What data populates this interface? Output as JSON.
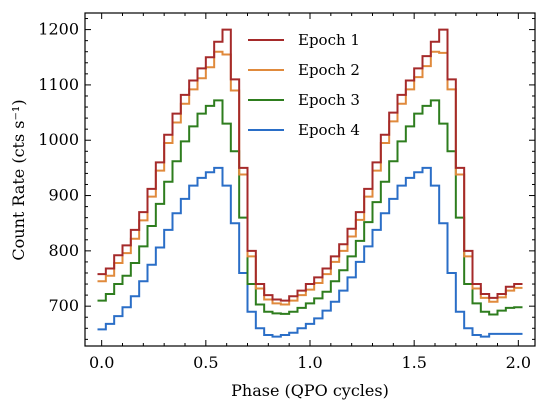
{
  "chart_data": {
    "type": "line",
    "title": "",
    "xlabel": "Phase (QPO cycles)",
    "ylabel": "Count Rate (cts s⁻¹)",
    "xlim": [
      -0.08,
      2.08
    ],
    "ylim": [
      628,
      1230
    ],
    "step": "histogram",
    "grid": false,
    "legend_position": "top-center",
    "xticks": [
      0.0,
      0.5,
      1.0,
      1.5,
      2.0
    ],
    "xtick_labels": [
      "0.0",
      "0.5",
      "1.0",
      "1.5",
      "2.0"
    ],
    "yticks": [
      700,
      800,
      900,
      1000,
      1100,
      1200
    ],
    "ytick_labels": [
      "700",
      "800",
      "900",
      "1000",
      "1100",
      "1200"
    ],
    "x": [
      0.0,
      0.04,
      0.08,
      0.12,
      0.16,
      0.2,
      0.24,
      0.28,
      0.32,
      0.36,
      0.4,
      0.44,
      0.48,
      0.52,
      0.56,
      0.6,
      0.64,
      0.68,
      0.72,
      0.76,
      0.8,
      0.84,
      0.88,
      0.92,
      0.96,
      1.0,
      1.04,
      1.08,
      1.12,
      1.16,
      1.2,
      1.24,
      1.28,
      1.32,
      1.36,
      1.4,
      1.44,
      1.48,
      1.52,
      1.56,
      1.6,
      1.64,
      1.68,
      1.72,
      1.76,
      1.8,
      1.84,
      1.88,
      1.92,
      1.96,
      2.0
    ],
    "series": [
      {
        "name": "Epoch 1",
        "color": "#a52a2a",
        "values": [
          758,
          768,
          792,
          810,
          838,
          870,
          912,
          960,
          1010,
          1048,
          1082,
          1108,
          1130,
          1150,
          1178,
          1200,
          1110,
          950,
          800,
          740,
          720,
          712,
          710,
          718,
          728,
          740,
          752,
          768,
          790,
          812,
          840,
          870,
          912,
          960,
          1010,
          1050,
          1082,
          1108,
          1130,
          1152,
          1178,
          1200,
          1110,
          950,
          800,
          740,
          722,
          715,
          722,
          735,
          740
        ]
      },
      {
        "name": "Epoch 2",
        "color": "#e08a3c",
        "values": [
          745,
          755,
          778,
          796,
          822,
          855,
          898,
          945,
          995,
          1032,
          1066,
          1092,
          1112,
          1132,
          1160,
          1155,
          1090,
          938,
          790,
          732,
          712,
          705,
          703,
          710,
          720,
          730,
          742,
          758,
          780,
          800,
          826,
          856,
          898,
          945,
          995,
          1034,
          1066,
          1092,
          1114,
          1134,
          1160,
          1158,
          1092,
          938,
          790,
          732,
          715,
          708,
          716,
          728,
          733
        ]
      },
      {
        "name": "Epoch 3",
        "color": "#2e7d1e",
        "values": [
          710,
          722,
          740,
          755,
          778,
          808,
          845,
          885,
          925,
          962,
          998,
          1025,
          1048,
          1062,
          1072,
          1030,
          980,
          860,
          740,
          703,
          690,
          687,
          686,
          690,
          697,
          705,
          714,
          726,
          745,
          765,
          790,
          818,
          852,
          888,
          925,
          962,
          998,
          1025,
          1048,
          1062,
          1072,
          1030,
          980,
          860,
          740,
          705,
          690,
          685,
          692,
          697,
          698
        ]
      },
      {
        "name": "Epoch 4",
        "color": "#2a6ec7",
        "values": [
          658,
          668,
          682,
          698,
          718,
          745,
          775,
          806,
          838,
          868,
          894,
          918,
          932,
          942,
          950,
          918,
          850,
          760,
          690,
          660,
          648,
          645,
          648,
          652,
          660,
          668,
          678,
          692,
          708,
          728,
          752,
          780,
          808,
          838,
          868,
          894,
          918,
          932,
          942,
          950,
          918,
          850,
          760,
          690,
          660,
          648,
          645,
          650,
          650,
          650,
          650
        ]
      }
    ]
  }
}
